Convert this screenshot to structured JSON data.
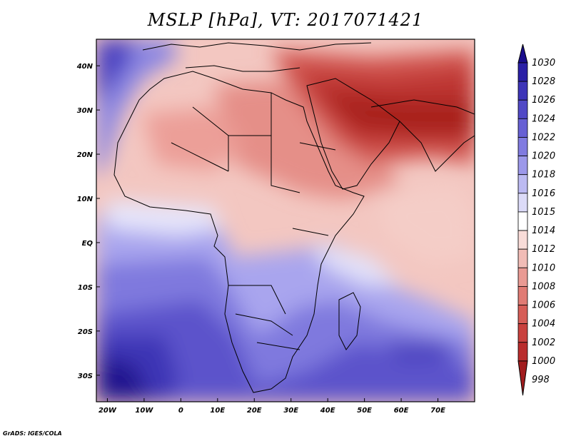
{
  "title": "MSLP [hPa], VT: 2017071421",
  "footer": "GrADS: IGES/COLA",
  "map": {
    "lon_range": [
      -23,
      80
    ],
    "lat_range": [
      -36,
      46
    ],
    "x_ticks": [
      {
        "lon": -20,
        "label": "20W"
      },
      {
        "lon": -10,
        "label": "10W"
      },
      {
        "lon": 0,
        "label": "0"
      },
      {
        "lon": 10,
        "label": "10E"
      },
      {
        "lon": 20,
        "label": "20E"
      },
      {
        "lon": 30,
        "label": "30E"
      },
      {
        "lon": 40,
        "label": "40E"
      },
      {
        "lon": 50,
        "label": "50E"
      },
      {
        "lon": 60,
        "label": "60E"
      },
      {
        "lon": 70,
        "label": "70E"
      }
    ],
    "y_ticks": [
      {
        "lat": 40,
        "label": "40N"
      },
      {
        "lat": 30,
        "label": "30N"
      },
      {
        "lat": 20,
        "label": "20N"
      },
      {
        "lat": 10,
        "label": "10N"
      },
      {
        "lat": 0,
        "label": "EQ"
      },
      {
        "lat": -10,
        "label": "10S"
      },
      {
        "lat": -20,
        "label": "20S"
      },
      {
        "lat": -30,
        "label": "30S"
      }
    ]
  },
  "colorbar": {
    "levels": [
      {
        "label": "1030",
        "color": "#1a0d8c"
      },
      {
        "label": "1028",
        "color": "#2a1fa6"
      },
      {
        "label": "1026",
        "color": "#3d34b8"
      },
      {
        "label": "1024",
        "color": "#5149c6"
      },
      {
        "label": "1022",
        "color": "#6760d4"
      },
      {
        "label": "1020",
        "color": "#807be0"
      },
      {
        "label": "1018",
        "color": "#9c98ea"
      },
      {
        "label": "1016",
        "color": "#bcbaf2"
      },
      {
        "label": "1015",
        "color": "#dcdbf8"
      },
      {
        "label": "1014",
        "color": "#ffffff"
      },
      {
        "label": "1012",
        "color": "#f9dcd8"
      },
      {
        "label": "1010",
        "color": "#f1bcb6"
      },
      {
        "label": "1008",
        "color": "#e99a93"
      },
      {
        "label": "1006",
        "color": "#e07b74"
      },
      {
        "label": "1004",
        "color": "#d65d57"
      },
      {
        "label": "1002",
        "color": "#c9413e"
      },
      {
        "label": "1000",
        "color": "#b92c2c"
      },
      {
        "label": "998",
        "color": "#a11c1e"
      }
    ]
  }
}
